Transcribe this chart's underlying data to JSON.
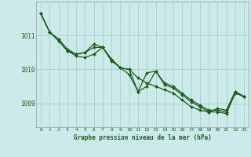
{
  "title": "Graphe pression niveau de la mer (hPa)",
  "bg_color": "#cceaea",
  "grid_color": "#aad4d4",
  "line_color": "#1a5e1a",
  "marker_color": "#1a5e1a",
  "xlim": [
    -0.5,
    23.5
  ],
  "ylim": [
    1008.3,
    1012.0
  ],
  "yticks": [
    1009,
    1010,
    1011
  ],
  "xticks": [
    0,
    1,
    2,
    3,
    4,
    5,
    6,
    7,
    8,
    9,
    10,
    11,
    12,
    13,
    14,
    15,
    16,
    17,
    18,
    19,
    20,
    21,
    22,
    23
  ],
  "series": [
    [
      1011.65,
      1011.1,
      1010.85,
      1010.55,
      1010.4,
      1010.35,
      1010.45,
      1010.65,
      1010.25,
      1010.05,
      1010.0,
      1009.75,
      1009.6,
      1009.5,
      1009.4,
      1009.3,
      1009.1,
      1008.9,
      1008.8,
      1008.75,
      1008.85,
      1008.8,
      1009.35,
      1009.2
    ],
    [
      1011.65,
      1011.1,
      1010.85,
      1010.55,
      1010.45,
      1010.5,
      1010.65,
      1010.65,
      1010.3,
      1010.05,
      1009.85,
      1009.35,
      1009.9,
      1009.95,
      1009.6,
      1009.5,
      1009.3,
      1009.1,
      1008.95,
      1008.8,
      1008.8,
      1008.75,
      1009.35,
      1009.2
    ],
    [
      1011.65,
      1011.1,
      1010.9,
      1010.6,
      1010.45,
      1010.5,
      1010.75,
      1010.65,
      1010.3,
      1010.05,
      1010.0,
      1009.35,
      1009.5,
      1009.95,
      1009.55,
      1009.45,
      1009.25,
      1009.05,
      1008.9,
      1008.75,
      1008.75,
      1008.7,
      1009.3,
      1009.2
    ]
  ]
}
